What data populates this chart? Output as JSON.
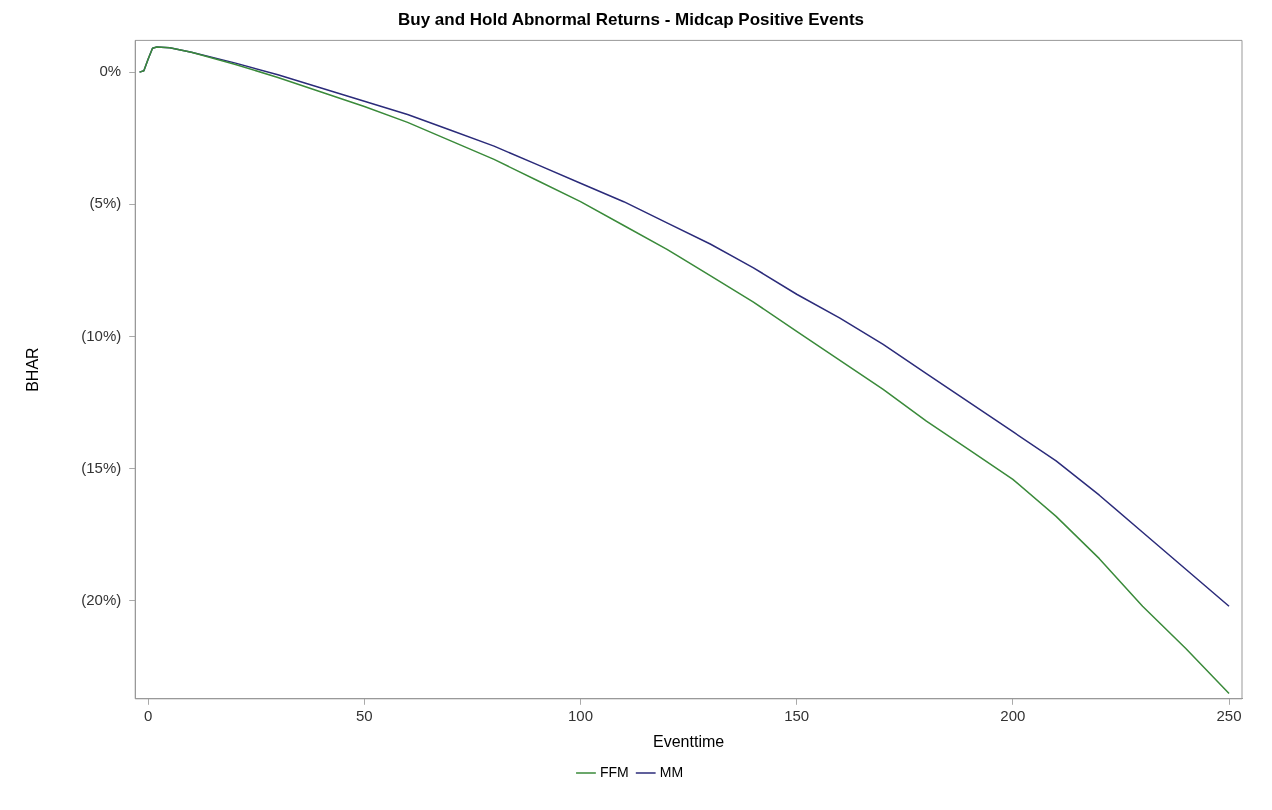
{
  "chart_data": {
    "type": "line",
    "title": "Buy and Hold Abnormal Returns - Midcap Positive Events",
    "xlabel": "Eventtime",
    "ylabel": "BHAR",
    "x": [
      -2,
      -1,
      0,
      1,
      2,
      5,
      10,
      20,
      30,
      40,
      50,
      60,
      70,
      80,
      90,
      100,
      110,
      120,
      130,
      140,
      150,
      160,
      170,
      180,
      190,
      200,
      210,
      220,
      230,
      240,
      250
    ],
    "series": [
      {
        "name": "FFM",
        "color": "#3a8a3a",
        "values": [
          0,
          0.05,
          0.5,
          0.9,
          0.95,
          0.92,
          0.75,
          0.3,
          -0.2,
          -0.75,
          -1.3,
          -1.9,
          -2.6,
          -3.3,
          -4.1,
          -4.9,
          -5.8,
          -6.7,
          -7.7,
          -8.7,
          -9.8,
          -10.9,
          -12.0,
          -13.2,
          -14.3,
          -15.4,
          -16.8,
          -18.4,
          -20.2,
          -21.8,
          -23.5
        ]
      },
      {
        "name": "MM",
        "color": "#2b2b7a",
        "values": [
          0,
          0.05,
          0.5,
          0.9,
          0.95,
          0.92,
          0.75,
          0.35,
          -0.1,
          -0.6,
          -1.1,
          -1.6,
          -2.2,
          -2.8,
          -3.5,
          -4.2,
          -4.9,
          -5.7,
          -6.5,
          -7.4,
          -8.4,
          -9.3,
          -10.3,
          -11.4,
          -12.5,
          -13.6,
          -14.7,
          -16.0,
          -17.4,
          -18.8,
          -20.2
        ]
      }
    ],
    "xlim": [
      -3,
      253
    ],
    "xticks": [
      0,
      50,
      100,
      150,
      200,
      250
    ],
    "ylim": [
      -23.7,
      1.2
    ],
    "yticks": [
      {
        "value": 0,
        "label": "0%"
      },
      {
        "value": -5,
        "label": "(5%)"
      },
      {
        "value": -10,
        "label": "(10%)"
      },
      {
        "value": -15,
        "label": "(15%)"
      },
      {
        "value": -20,
        "label": "(20%)"
      }
    ],
    "grid": false,
    "legend": "bottom",
    "marker": "none",
    "line_style": "solid"
  }
}
